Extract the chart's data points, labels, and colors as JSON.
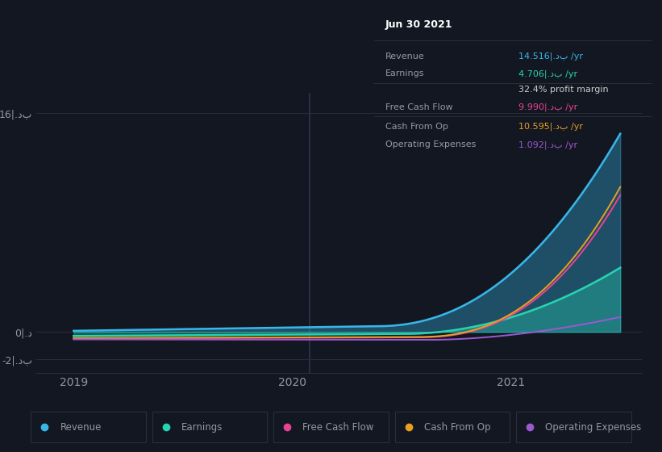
{
  "background_color": "#131722",
  "plot_bg_color": "#131722",
  "text_color": "#9598a1",
  "grid_color": "#2a2e39",
  "series": {
    "Revenue": {
      "color": "#38b6e8",
      "fill_alpha": 0.35
    },
    "Earnings": {
      "color": "#26d4b0",
      "fill_alpha": 0.35
    },
    "Free Cash Flow": {
      "color": "#e84393",
      "fill_alpha": 0.0
    },
    "Cash From Op": {
      "color": "#e8a020",
      "fill_alpha": 0.0
    },
    "Operating Expenses": {
      "color": "#9b59d0",
      "fill_alpha": 0.0
    }
  },
  "legend_items": [
    {
      "label": "Revenue",
      "color": "#38b6e8"
    },
    {
      "label": "Earnings",
      "color": "#26d4b0"
    },
    {
      "label": "Free Cash Flow",
      "color": "#e84393"
    },
    {
      "label": "Cash From Op",
      "color": "#e8a020"
    },
    {
      "label": "Operating Expenses",
      "color": "#9b59d0"
    }
  ],
  "tooltip": {
    "date": "Jun 30 2021",
    "rows": [
      {
        "label": "Revenue",
        "label_color": "#9598a1",
        "value": "14.516|.دب /yr",
        "val_color": "#38b6e8",
        "sep_after": false
      },
      {
        "label": "Earnings",
        "label_color": "#9598a1",
        "value": "4.706|.دب /yr",
        "val_color": "#26d4b0",
        "sep_after": false
      },
      {
        "label": "",
        "label_color": "#9598a1",
        "value": "32.4% profit margin",
        "val_color": "#cccccc",
        "sep_after": true
      },
      {
        "label": "Free Cash Flow",
        "label_color": "#9598a1",
        "value": "9.990|.دب /yr",
        "val_color": "#e84393",
        "sep_after": false
      },
      {
        "label": "Cash From Op",
        "label_color": "#9598a1",
        "value": "10.595|.دب /yr",
        "val_color": "#e8a020",
        "sep_after": false
      },
      {
        "label": "Operating Expenses",
        "label_color": "#9598a1",
        "value": "1.092|.دب /yr",
        "val_color": "#9b59d0",
        "sep_after": false
      }
    ]
  },
  "ytick_labels": [
    "16|.دب",
    "0|.د",
    "-2|.دب"
  ],
  "ytick_vals": [
    16,
    0,
    -2
  ],
  "ylim": [
    -3,
    17.5
  ],
  "xlim_start": 2018.83,
  "xlim_end": 2021.6,
  "vline_x": 2020.08
}
